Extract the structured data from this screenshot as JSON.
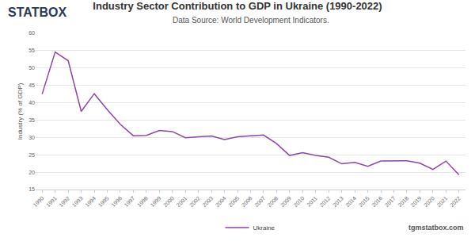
{
  "chart_data": {
    "type": "line",
    "title": "Industry Sector Contribution to GDP in Ukraine (1990-2022)",
    "subtitle": "Data Source: World Development Indicators.",
    "branding": "STATBOX",
    "footer": "tgmstatbox.com",
    "y_label": "Industry (% of GDP)",
    "categories": [
      "1990",
      "1991",
      "1992",
      "1993",
      "1994",
      "1995",
      "1996",
      "1997",
      "1998",
      "1999",
      "2000",
      "2001",
      "2002",
      "2003",
      "2004",
      "2005",
      "2006",
      "2007",
      "2008",
      "2009",
      "2010",
      "2011",
      "2012",
      "2013",
      "2014",
      "2015",
      "2016",
      "2017",
      "2018",
      "2019",
      "2020",
      "2021",
      "2022"
    ],
    "series": [
      {
        "name": "Ukraine",
        "color": "#8e44ad",
        "values": [
          42.5,
          54.6,
          52.1,
          37.5,
          42.6,
          38.0,
          33.8,
          30.5,
          30.6,
          32.0,
          31.7,
          29.9,
          30.2,
          30.4,
          29.4,
          30.2,
          30.5,
          30.7,
          28.2,
          24.8,
          25.6,
          24.8,
          24.3,
          22.4,
          22.8,
          21.7,
          23.2,
          23.3,
          23.3,
          22.6,
          20.8,
          23.2,
          19.2
        ]
      }
    ],
    "ylim": [
      15,
      60
    ],
    "yticks": [
      15,
      20,
      25,
      30,
      35,
      40,
      45,
      50,
      55,
      60
    ],
    "grid": true,
    "legend": "bottom"
  }
}
